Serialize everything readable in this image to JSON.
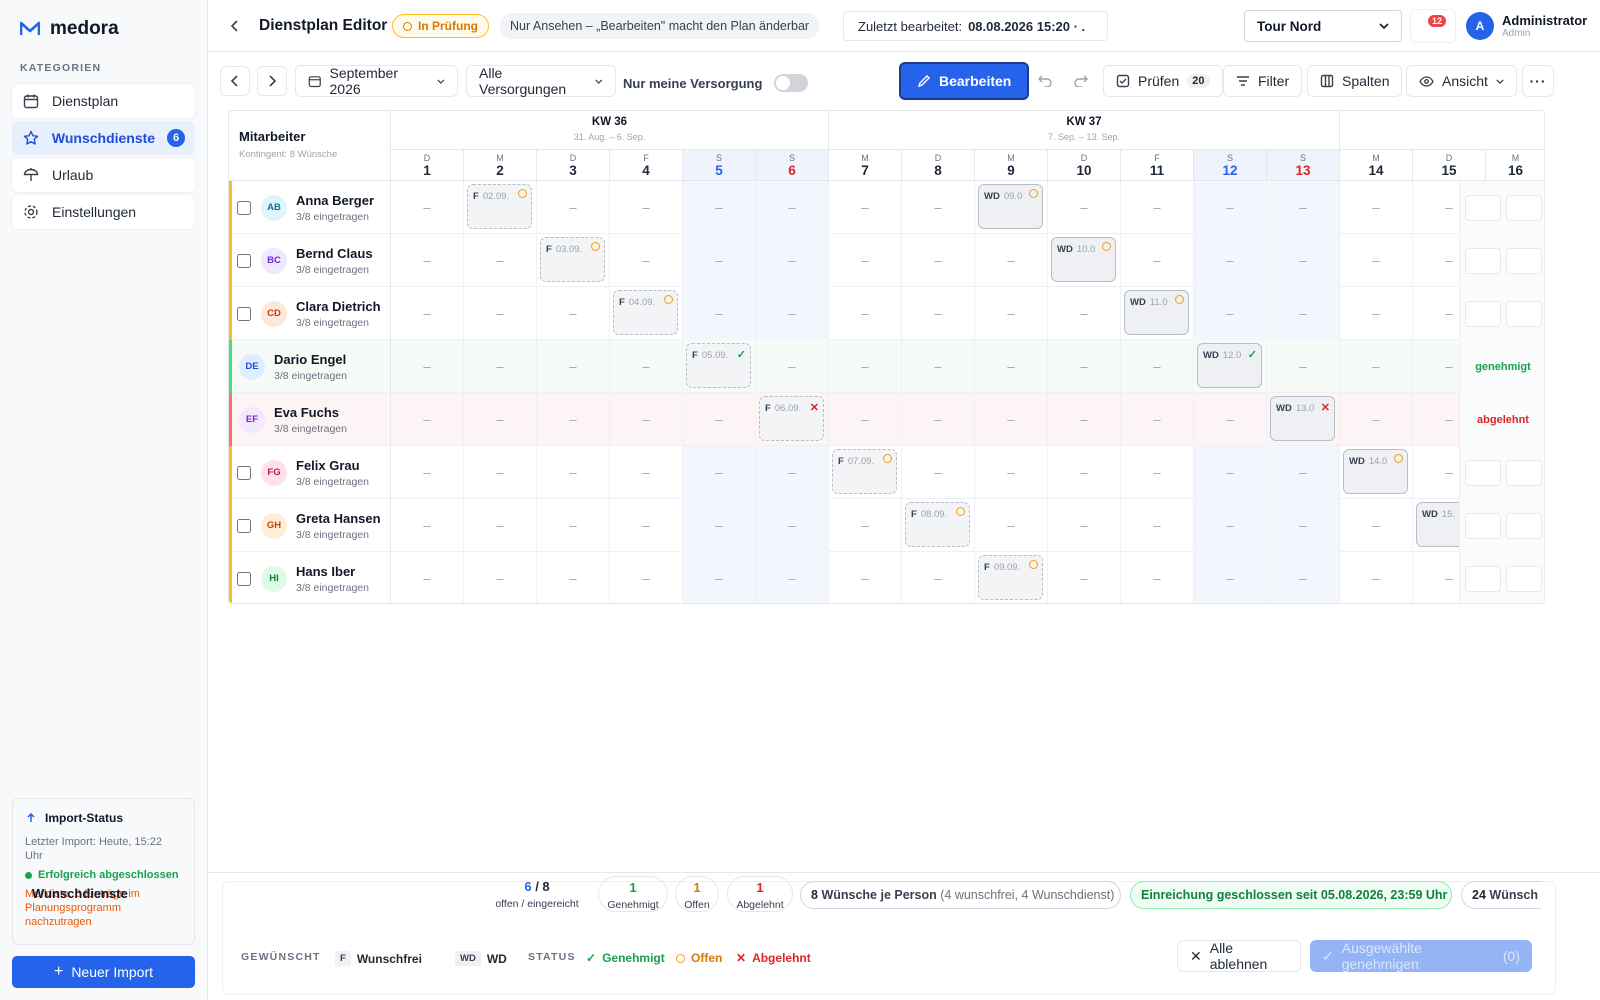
{
  "app": {
    "name": "medora"
  },
  "sidebar": {
    "category_title": "KATEGORIEN",
    "items": [
      {
        "label": "Dienstplan",
        "icon": "calendar-icon"
      },
      {
        "label": "Wunschdienste",
        "icon": "star-icon",
        "badge": "6"
      },
      {
        "label": "Urlaub",
        "icon": "umbrella-icon"
      },
      {
        "label": "Einstellungen",
        "icon": "gear-icon"
      }
    ],
    "import": {
      "title": "Import-Status",
      "last": "Letzter Import: Heute, 15:22 Uhr",
      "status": "Erfolgreich abgeschlossen",
      "warning": "Merkliste: 6 Einträge im Planungsprogramm nachzutragen"
    },
    "new_import": "Neuer Import"
  },
  "header": {
    "title": "Dienstplan Editor",
    "review": "In Prüfung",
    "view_only": "Nur Ansehen – „Bearbeiten\" macht den Plan änderbar",
    "last_edited_label": "Zuletzt bearbeitet:",
    "last_edited_value": "08.08.2026 15:20 · .",
    "tour": "Tour Nord",
    "notifications": "12",
    "user_initial": "A",
    "user_name": "Administrator",
    "user_role": "Admin"
  },
  "toolbar": {
    "month": "September 2026",
    "supply": "Alle Versorgungen",
    "only_mine": "Nur meine Versorgung",
    "edit": "Bearbeiten",
    "check": "Prüfen",
    "check_count": "20",
    "filter": "Filter",
    "columns": "Spalten",
    "view": "Ansicht"
  },
  "grid": {
    "emp_header": "Mitarbeiter",
    "emp_sub": "Kontingent: 8 Wünsche",
    "weeks": [
      {
        "label": "KW 36",
        "range": "31. Aug. – 6. Sep."
      },
      {
        "label": "KW 37",
        "range": "7. Sep. – 13. Sep."
      }
    ],
    "days": [
      {
        "l": "D",
        "n": "1"
      },
      {
        "l": "M",
        "n": "2"
      },
      {
        "l": "D",
        "n": "3"
      },
      {
        "l": "F",
        "n": "4"
      },
      {
        "l": "S",
        "n": "5"
      },
      {
        "l": "S",
        "n": "6"
      },
      {
        "l": "M",
        "n": "7"
      },
      {
        "l": "D",
        "n": "8"
      },
      {
        "l": "M",
        "n": "9"
      },
      {
        "l": "D",
        "n": "10"
      },
      {
        "l": "F",
        "n": "11"
      },
      {
        "l": "S",
        "n": "12"
      },
      {
        "l": "S",
        "n": "13"
      },
      {
        "l": "M",
        "n": "14"
      },
      {
        "l": "D",
        "n": "15"
      },
      {
        "l": "M",
        "n": "16"
      }
    ],
    "empty_mark": "–",
    "rows": [
      {
        "ini": "AB",
        "name": "Anna Berger",
        "count": "3/8 eingetragen",
        "wishes": [
          {
            "day": 1,
            "kind": "F",
            "date": "02.09.",
            "status": "open"
          },
          {
            "day": 8,
            "kind": "WD",
            "date": "09.0",
            "status": "open"
          }
        ]
      },
      {
        "ini": "BC",
        "name": "Bernd Claus",
        "count": "3/8 eingetragen",
        "wishes": [
          {
            "day": 2,
            "kind": "F",
            "date": "03.09.",
            "status": "open"
          },
          {
            "day": 9,
            "kind": "WD",
            "date": "10.0",
            "status": "open"
          }
        ]
      },
      {
        "ini": "CD",
        "name": "Clara Dietrich",
        "count": "3/8 eingetragen",
        "wishes": [
          {
            "day": 3,
            "kind": "F",
            "date": "04.09.",
            "status": "open"
          },
          {
            "day": 10,
            "kind": "WD",
            "date": "11.0",
            "status": "open"
          }
        ]
      },
      {
        "ini": "DE",
        "name": "Dario Engel",
        "count": "3/8 eingetragen",
        "tail": "genehmigt",
        "wishes": [
          {
            "day": 4,
            "kind": "F",
            "date": "05.09.",
            "status": "ok"
          },
          {
            "day": 11,
            "kind": "WD",
            "date": "12.0",
            "status": "ok"
          }
        ]
      },
      {
        "ini": "EF",
        "name": "Eva Fuchs",
        "count": "3/8 eingetragen",
        "tail": "abgelehnt",
        "wishes": [
          {
            "day": 5,
            "kind": "F",
            "date": "06.09.",
            "status": "no"
          },
          {
            "day": 12,
            "kind": "WD",
            "date": "13.0",
            "status": "no"
          }
        ]
      },
      {
        "ini": "FG",
        "name": "Felix Grau",
        "count": "3/8 eingetragen",
        "wishes": [
          {
            "day": 6,
            "kind": "F",
            "date": "07.09.",
            "status": "open"
          },
          {
            "day": 13,
            "kind": "WD",
            "date": "14.0",
            "status": "open"
          }
        ]
      },
      {
        "ini": "GH",
        "name": "Greta Hansen",
        "count": "3/8 eingetragen",
        "wishes": [
          {
            "day": 7,
            "kind": "F",
            "date": "08.09.",
            "status": "open"
          },
          {
            "day": 14,
            "kind": "WD",
            "date": "15.",
            "status": "none"
          }
        ]
      },
      {
        "ini": "HI",
        "name": "Hans Iber",
        "count": "3/8 eingetragen",
        "wishes": [
          {
            "day": 8,
            "kind": "F",
            "date": "09.09.",
            "status": "open"
          }
        ]
      }
    ]
  },
  "footer": {
    "title": "Wunschdienste",
    "open_num": "6",
    "open_total": "8",
    "open_label": "offen / eingereicht",
    "approved_num": "1",
    "approved_label": "Genehmigt",
    "pending_num": "1",
    "pending_label": "Offen",
    "rejected_num": "1",
    "rejected_label": "Abgelehnt",
    "per_person_num": "8",
    "per_person": "Wünsche je Person",
    "per_person_detail": "(4 wunschfrei, 4 Wunschdienst)",
    "deadline": "Einreichung geschlossen seit 05.08.2026, 23:59 Uhr",
    "trunc_num": "24",
    "trunc": "Wünsch",
    "legend_wished": "GEWÜNSCHT",
    "legend_f_key": "F",
    "legend_f": "Wunschfrei",
    "legend_wd_key": "WD",
    "legend_wd": "WD",
    "legend_status": "STATUS",
    "legend_ok": "Genehmigt",
    "legend_open": "Offen",
    "legend_no": "Abgelehnt",
    "reject_all": "Alle ablehnen",
    "approve_sel": "Ausgewählte genehmigen",
    "approve_count": "(0)"
  },
  "colors": {
    "accent": "#2563eb",
    "ok": "#16a34a",
    "open": "#f59e0b",
    "no": "#dc2626"
  }
}
